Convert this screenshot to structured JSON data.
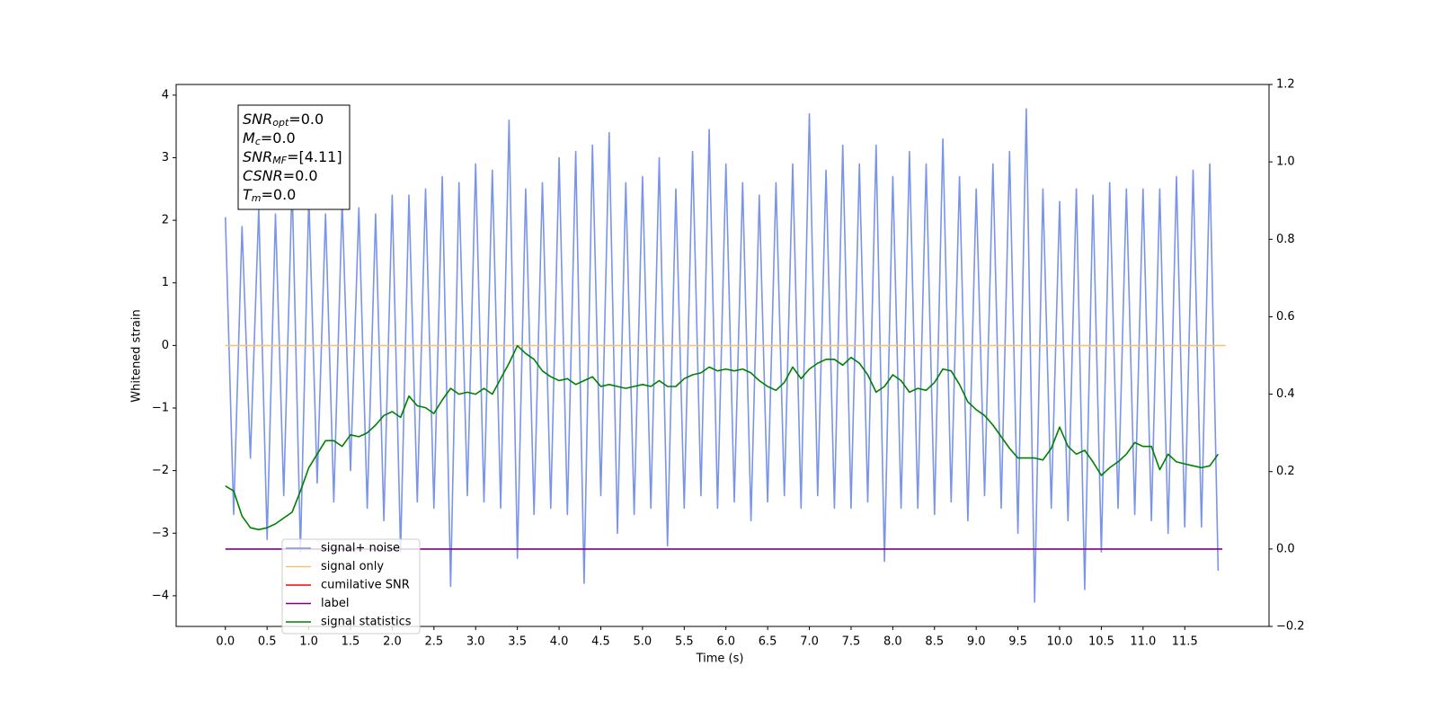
{
  "chart_data": {
    "type": "line",
    "xlabel": "Time (s)",
    "ylabel": "Whitened strain",
    "xlim": [
      -0.59,
      12.51
    ],
    "ylim": [
      -4.49,
      4.17
    ],
    "y2lim": [
      -0.2,
      1.2
    ],
    "xticks": [
      {
        "value": 0,
        "label": "0.0"
      },
      0.5,
      {
        "value": 1,
        "label": "1.0"
      },
      1.5,
      {
        "value": 2,
        "label": "2.0"
      },
      2.5,
      {
        "value": 3,
        "label": "3.0"
      },
      3.5,
      {
        "value": 4,
        "label": "4.0"
      },
      4.5,
      {
        "value": 5,
        "label": "5.0"
      },
      5.5,
      {
        "value": 6,
        "label": "6.0"
      },
      6.5,
      {
        "value": 7,
        "label": "7.0"
      },
      7.5,
      {
        "value": 8,
        "label": "8.0"
      },
      8.5,
      {
        "value": 9,
        "label": "9.0"
      },
      9.5,
      {
        "value": 10,
        "label": "10.0"
      },
      10.5,
      {
        "value": 11,
        "label": "11.0"
      },
      11.5
    ],
    "yticks": [
      {
        "value": -4,
        "label": "−4"
      },
      {
        "value": -3,
        "label": "−3"
      },
      {
        "value": -2,
        "label": "−2"
      },
      {
        "value": -1,
        "label": "−1"
      },
      0,
      1,
      2,
      3,
      4
    ],
    "y2ticks": [
      {
        "value": -0.2,
        "label": "−0.2"
      },
      {
        "value": 0,
        "label": "0.0"
      },
      0.2,
      0.4,
      0.6,
      0.8,
      {
        "value": 1,
        "label": "1.0"
      },
      1.2
    ],
    "legend": "lower left",
    "annotations": [
      {
        "name": "SNR",
        "sub": "opt",
        "value": "=0.0"
      },
      {
        "name": "M",
        "sub": "c",
        "value": "=0.0"
      },
      {
        "name": "SNR",
        "sub": "MF",
        "value": "=[4.11]"
      },
      {
        "name": "CSNR",
        "value": "=0.0"
      },
      {
        "name": "T",
        "sub": "m",
        "value": "=0.0"
      }
    ],
    "x": [
      0,
      0.1,
      0.2,
      0.3,
      0.4,
      0.5,
      0.6,
      0.7,
      0.8,
      0.9,
      1,
      1.1,
      1.2,
      1.3,
      1.4,
      1.5,
      1.6,
      1.7,
      1.8,
      1.9,
      2,
      2.1,
      2.2,
      2.3,
      2.4,
      2.5,
      2.6,
      2.7,
      2.8,
      2.9,
      3,
      3.1,
      3.2,
      3.3,
      3.4,
      3.5,
      3.6,
      3.7,
      3.8,
      3.9,
      4,
      4.1,
      4.2,
      4.3,
      4.4,
      4.5,
      4.6,
      4.7,
      4.8,
      4.9,
      5,
      5.1,
      5.2,
      5.3,
      5.4,
      5.5,
      5.6,
      5.7,
      5.8,
      5.9,
      6,
      6.1,
      6.2,
      6.3,
      6.4,
      6.5,
      6.6,
      6.7,
      6.8,
      6.9,
      7,
      7.1,
      7.2,
      7.3,
      7.4,
      7.5,
      7.6,
      7.7,
      7.8,
      7.9,
      8,
      8.1,
      8.2,
      8.3,
      8.4,
      8.5,
      8.6,
      8.7,
      8.8,
      8.9,
      9,
      9.1,
      9.2,
      9.3,
      9.4,
      9.5,
      9.6,
      9.7,
      9.8,
      9.9,
      10,
      10.1,
      10.2,
      10.3,
      10.4,
      10.5,
      10.6,
      10.7,
      10.8,
      10.9,
      11,
      11.1,
      11.2,
      11.3,
      11.4,
      11.5,
      11.6,
      11.7,
      11.8,
      11.9
    ],
    "series": [
      {
        "name": "signal+ noise",
        "color": "#7994e8",
        "values": [
          2.05,
          -2.7,
          1.9,
          -1.8,
          2.2,
          -3.1,
          2.1,
          -2.4,
          2.6,
          -3.3,
          2.4,
          -2.2,
          2.1,
          -2.5,
          2.3,
          -2.0,
          2.2,
          -2.6,
          2.1,
          -2.8,
          2.4,
          -3.3,
          2.4,
          -2.5,
          2.5,
          -2.6,
          2.7,
          -3.85,
          2.6,
          -2.4,
          2.9,
          -2.5,
          2.8,
          -2.6,
          3.6,
          -3.4,
          2.5,
          -2.7,
          2.6,
          -2.6,
          3.0,
          -2.7,
          3.1,
          -3.8,
          3.2,
          -2.4,
          3.4,
          -3.0,
          2.6,
          -2.7,
          2.7,
          -2.6,
          3.0,
          -3.2,
          2.5,
          -2.6,
          3.1,
          -2.4,
          3.45,
          -2.6,
          2.9,
          -2.5,
          2.6,
          -2.8,
          2.4,
          -2.5,
          2.6,
          -2.4,
          2.9,
          -2.6,
          3.7,
          -2.4,
          2.8,
          -2.6,
          3.2,
          -2.6,
          2.9,
          -2.5,
          3.2,
          -3.45,
          2.7,
          -2.6,
          3.1,
          -2.6,
          2.9,
          -2.7,
          3.3,
          -2.5,
          2.7,
          -2.8,
          2.5,
          -2.4,
          2.9,
          -2.6,
          3.1,
          -3.0,
          3.78,
          -4.1,
          2.5,
          -2.6,
          2.3,
          -2.8,
          2.5,
          -3.9,
          2.4,
          -3.3,
          2.6,
          -2.6,
          2.5,
          -2.7,
          2.5,
          -2.8,
          2.5,
          -3.0,
          2.7,
          -2.9,
          2.8,
          -2.9,
          2.9,
          -3.6
        ]
      },
      {
        "name": "signal only",
        "color": "#f5c27a",
        "x": [
          0,
          11.99
        ],
        "values": [
          0,
          0
        ]
      },
      {
        "name": "cumilative SNR",
        "color": "#ff0000",
        "x": [],
        "values": [],
        "axis": "y2"
      },
      {
        "name": "label",
        "color": "#800080",
        "x": [
          0,
          11.95
        ],
        "values": [
          0,
          0
        ],
        "axis": "y2"
      },
      {
        "name": "signal statistics",
        "color": "#008000",
        "axis": "y2",
        "values": [
          0.163,
          0.15,
          0.085,
          0.055,
          0.05,
          0.055,
          0.065,
          0.08,
          0.095,
          0.15,
          0.21,
          0.245,
          0.28,
          0.28,
          0.265,
          0.295,
          0.29,
          0.3,
          0.32,
          0.345,
          0.355,
          0.34,
          0.395,
          0.37,
          0.365,
          0.35,
          0.385,
          0.415,
          0.4,
          0.405,
          0.4,
          0.415,
          0.4,
          0.44,
          0.48,
          0.525,
          0.505,
          0.49,
          0.46,
          0.445,
          0.435,
          0.44,
          0.425,
          0.435,
          0.445,
          0.42,
          0.425,
          0.42,
          0.415,
          0.42,
          0.425,
          0.42,
          0.435,
          0.42,
          0.42,
          0.44,
          0.45,
          0.455,
          0.47,
          0.46,
          0.465,
          0.46,
          0.465,
          0.455,
          0.435,
          0.42,
          0.41,
          0.43,
          0.47,
          0.44,
          0.465,
          0.48,
          0.49,
          0.49,
          0.475,
          0.495,
          0.48,
          0.45,
          0.405,
          0.42,
          0.45,
          0.435,
          0.405,
          0.415,
          0.41,
          0.43,
          0.465,
          0.46,
          0.425,
          0.38,
          0.36,
          0.345,
          0.32,
          0.29,
          0.26,
          0.235,
          0.235,
          0.235,
          0.23,
          0.26,
          0.315,
          0.265,
          0.245,
          0.255,
          0.225,
          0.19,
          0.21,
          0.225,
          0.245,
          0.275,
          0.265,
          0.265,
          0.205,
          0.245,
          0.225,
          0.22,
          0.215,
          0.21,
          0.215,
          0.245
        ]
      }
    ]
  }
}
